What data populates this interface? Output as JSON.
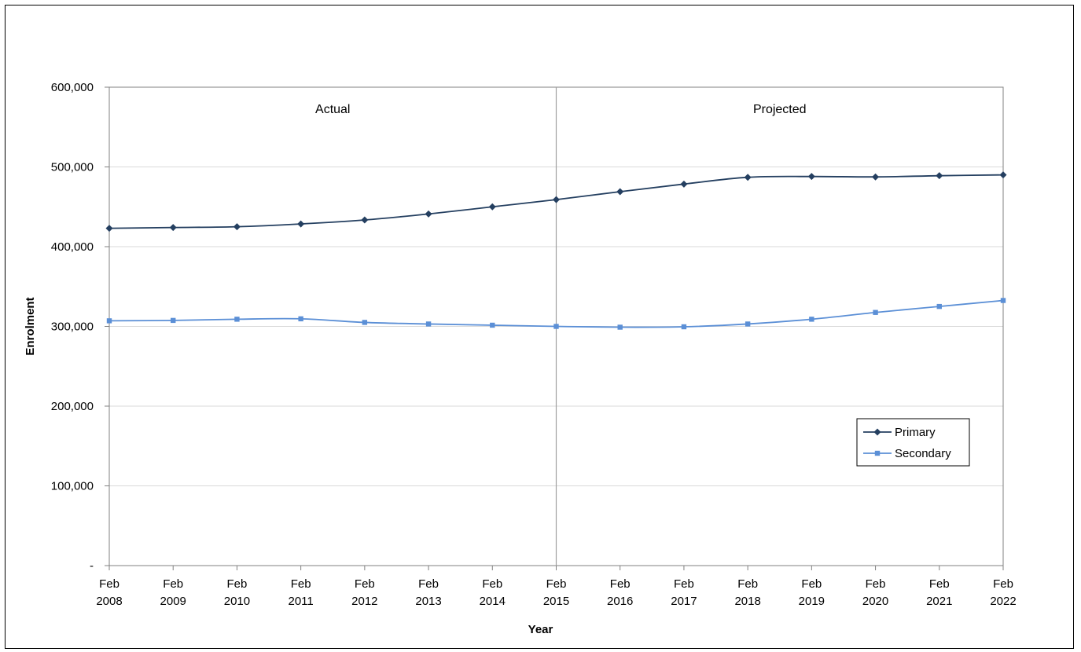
{
  "chart_data": {
    "type": "line",
    "title": "",
    "xlabel": "Year",
    "ylabel": "Enrolment",
    "ylim": [
      0,
      600000
    ],
    "yticks": [
      {
        "value": 0,
        "label": "-"
      },
      {
        "value": 100000,
        "label": "100,000"
      },
      {
        "value": 200000,
        "label": "200,000"
      },
      {
        "value": 300000,
        "label": "300,000"
      },
      {
        "value": 400000,
        "label": "400,000"
      },
      {
        "value": 500000,
        "label": "500,000"
      },
      {
        "value": 600000,
        "label": "600,000"
      }
    ],
    "categories": [
      {
        "month": "Feb",
        "year": "2008"
      },
      {
        "month": "Feb",
        "year": "2009"
      },
      {
        "month": "Feb",
        "year": "2010"
      },
      {
        "month": "Feb",
        "year": "2011"
      },
      {
        "month": "Feb",
        "year": "2012"
      },
      {
        "month": "Feb",
        "year": "2013"
      },
      {
        "month": "Feb",
        "year": "2014"
      },
      {
        "month": "Feb",
        "year": "2015"
      },
      {
        "month": "Feb",
        "year": "2016"
      },
      {
        "month": "Feb",
        "year": "2017"
      },
      {
        "month": "Feb",
        "year": "2018"
      },
      {
        "month": "Feb",
        "year": "2019"
      },
      {
        "month": "Feb",
        "year": "2020"
      },
      {
        "month": "Feb",
        "year": "2021"
      },
      {
        "month": "Feb",
        "year": "2022"
      }
    ],
    "series": [
      {
        "name": "Primary",
        "color": "#243F60",
        "marker": "diamond",
        "values": [
          423000,
          424000,
          425000,
          428500,
          433500,
          441000,
          450000,
          459000,
          469000,
          478500,
          487000,
          488000,
          487500,
          489000,
          490000
        ]
      },
      {
        "name": "Secondary",
        "color": "#5B8FD6",
        "marker": "square",
        "values": [
          307000,
          307500,
          309000,
          309500,
          305000,
          303000,
          301500,
          300000,
          299000,
          299500,
          303000,
          309000,
          317500,
          325000,
          332500
        ]
      }
    ],
    "divider_index": 7,
    "regions": [
      {
        "label": "Actual"
      },
      {
        "label": "Projected"
      }
    ],
    "grid": true,
    "legend_position": "lower-right"
  }
}
